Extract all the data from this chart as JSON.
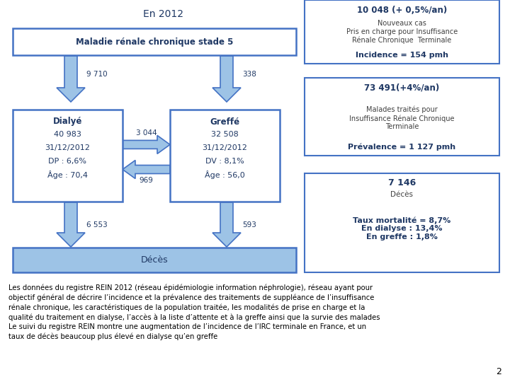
{
  "title": "En 2012",
  "bg_color": "#ffffff",
  "title_color": "#1f3864",
  "box_border_color": "#4472c4",
  "arrow_color": "#9dc3e6",
  "arrow_border_color": "#4472c4",
  "text_dark": "#1f3864",
  "text_mid": "#404040",
  "main_box_label": "Maladie rénale chronique stade 5",
  "dialyse_lines": [
    "Dialyé",
    "40 983",
    "31/12/2012",
    "DP : 6,6%",
    "Âge : 70,4"
  ],
  "greffe_lines": [
    "Greffé",
    "32 508",
    "31/12/2012",
    "DV : 8,1%",
    "Âge : 56,0"
  ],
  "deces_label": "Décès",
  "arrow_9710": "9 710",
  "arrow_338": "338",
  "arrow_3044": "3 044",
  "arrow_969": "969",
  "arrow_6553": "6 553",
  "arrow_593": "593",
  "rb1_l1": "10 048 (+ 0,5%/an)",
  "rb1_l2": "Nouveaux cas\nPris en charge pour Insuffisance\nRénale Chronique  Terminale",
  "rb1_l3": "Incidence = 154 pmh",
  "rb2_l1": "73 491(+4%/an)",
  "rb2_l2": "Malades traités pour\nInsuffisance Rénale Chronique\nTerminale",
  "rb2_l3": "Prévalence = 1 127 pmh",
  "rb3_l1": "7 146",
  "rb3_l2": "Décès",
  "rb3_l3": "Taux mortalité = 8,7%\nEn dialyse : 13,4%\nEn greffe : 1,8%",
  "footer": "Les données du registre REIN 2012 (réseau épidémiologie information néphrologie), réseau ayant pour\nobjectif général de décrire l’incidence et la prévalence des traitements de suppléance de l’insuffisance\nrénale chronique, les caractéristiques de la population traitée, les modalités de prise en charge et la\nqualité du traitement en dialyse, l’accès à la liste d’attente et à la greffe ainsi que la survie des malades\nLe suivi du registre REIN montre une augmentation de l’incidence de l’IRC terminale en France, et un\ntaux de décès beaucoup plus élevé en dialyse qu’en greffe"
}
